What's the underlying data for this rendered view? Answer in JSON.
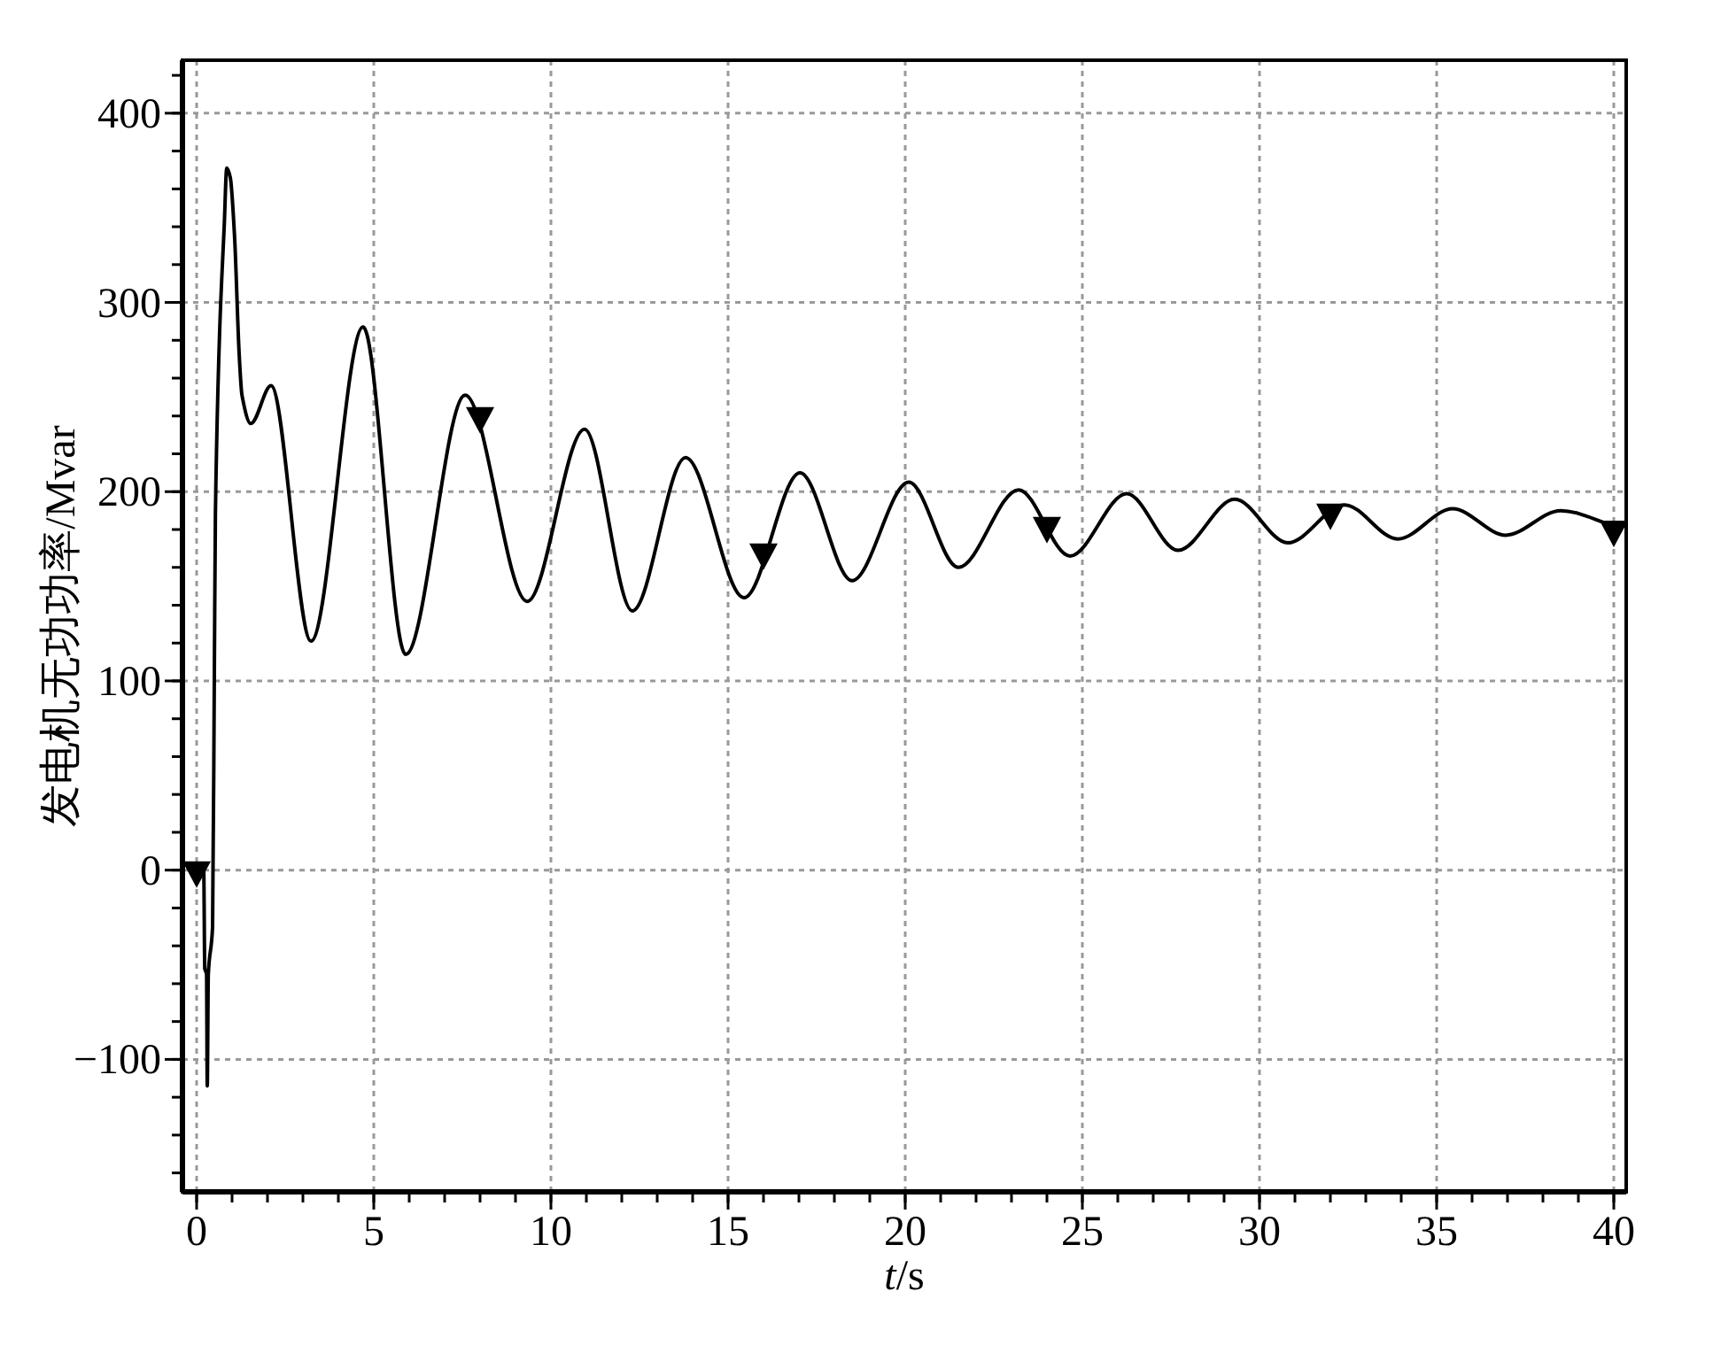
{
  "chart_data": {
    "type": "line",
    "xlabel": "t/s",
    "ylabel": "发电机无功功率/Mvar",
    "xlim": [
      -0.4,
      40.35
    ],
    "ylim": [
      -170,
      428
    ],
    "xticks": [
      0,
      5,
      10,
      15,
      20,
      25,
      30,
      35,
      40
    ],
    "yticks": [
      -100,
      0,
      100,
      200,
      300,
      400
    ],
    "grid": true,
    "series": [
      {
        "color": "#000000",
        "marker": "none",
        "line_style": "solid",
        "x": [
          0,
          0.2,
          0.23,
          0.28,
          0.3,
          0.33,
          0.45,
          0.5,
          0.53,
          0.65,
          0.78,
          0.85,
          0.95,
          1.07,
          1.2,
          1.28,
          1.53,
          2.1,
          3.23,
          4.7,
          5.9,
          7.58,
          9.33,
          10.95,
          12.3,
          13.8,
          15.45,
          17.03,
          18.5,
          20.1,
          21.5,
          23.2,
          24.65,
          26.25,
          27.7,
          29.3,
          30.8,
          32.4,
          33.9,
          35.45,
          36.95,
          38.5,
          40
        ],
        "values": [
          0,
          0,
          -52,
          -55,
          -114,
          -55,
          -30,
          104,
          188,
          285,
          341,
          371,
          366,
          335,
          273,
          251,
          236,
          256,
          121,
          287,
          114,
          251,
          142,
          233,
          137,
          218,
          144,
          210,
          153,
          205,
          160,
          201,
          166,
          199,
          169,
          196,
          173,
          193,
          175,
          191,
          177,
          190,
          182
        ]
      },
      {
        "type": "scatter",
        "color": "#000000",
        "marker": "triangle",
        "x": [
          0,
          8,
          16,
          24,
          32,
          40
        ],
        "values": [
          0,
          240,
          168,
          182,
          189,
          180
        ]
      }
    ]
  }
}
